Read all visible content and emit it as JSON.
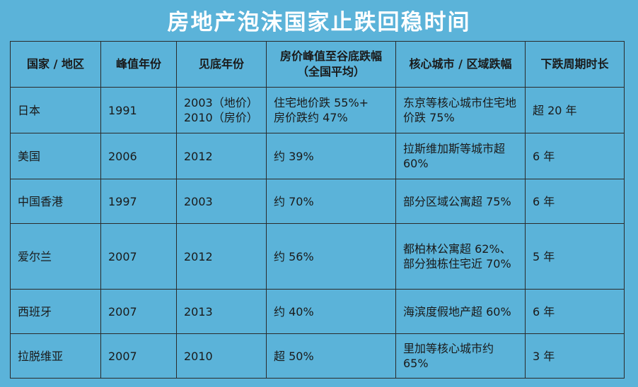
{
  "title": "房地产泡沫国家止跌回稳时间",
  "headers": {
    "country": "国家 / 地区",
    "peak_year": "峰值年份",
    "bottom_year": "见底年份",
    "national_drop": "房价峰值至谷底跌幅（全国平均）",
    "core_drop": "核心城市 / 区域跌幅",
    "duration": "下跌周期时长"
  },
  "rows": [
    {
      "country": "日本",
      "peak_year": "1991",
      "bottom_year": "2003（地价）\n2010（房价）",
      "national_drop": "住宅地价跌 55%+\n房价跌约 47%",
      "core_drop": "东京等核心城市住宅地价跌 75%",
      "duration": "超 20 年"
    },
    {
      "country": "美国",
      "peak_year": "2006",
      "bottom_year": "2012",
      "national_drop": "约 39%",
      "core_drop": "拉斯维加斯等城市超 60%",
      "duration": "6 年"
    },
    {
      "country": "中国香港",
      "peak_year": "1997",
      "bottom_year": "2003",
      "national_drop": "约 70%",
      "core_drop": "部分区域公寓超 75%",
      "duration": "6 年"
    },
    {
      "country": "爱尔兰",
      "peak_year": "2007",
      "bottom_year": "2012",
      "national_drop": "约 56%",
      "core_drop": "都柏林公寓超 62%、部分独栋住宅近 70%",
      "duration": "5 年"
    },
    {
      "country": "西班牙",
      "peak_year": "2007",
      "bottom_year": "2013",
      "national_drop": "约 40%",
      "core_drop": "海滨度假地产超 60%",
      "duration": "6 年"
    },
    {
      "country": "拉脱维亚",
      "peak_year": "2007",
      "bottom_year": "2010",
      "national_drop": "超 50%",
      "core_drop": "里加等核心城市约 65%",
      "duration": "3 年"
    }
  ]
}
